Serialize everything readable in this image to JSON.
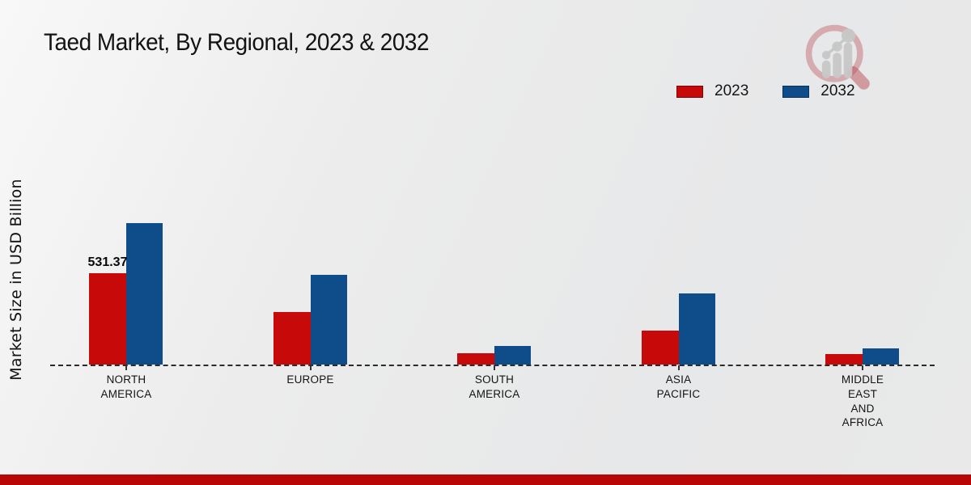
{
  "page": {
    "title": "Taed Market, By Regional, 2023 & 2032"
  },
  "y_axis": {
    "label": "Market Size in USD Billion"
  },
  "legend": {
    "items": [
      {
        "label": "2023",
        "color": "#c70909"
      },
      {
        "label": "2032",
        "color": "#0e4c8a"
      }
    ]
  },
  "chart_data": {
    "type": "bar",
    "title": "Taed Market, By Regional, 2023 & 2032",
    "xlabel": "",
    "ylabel": "Market Size in USD Billion",
    "categories": [
      "NORTH AMERICA",
      "EUROPE",
      "SOUTH AMERICA",
      "ASIA PACIFIC",
      "MIDDLE EAST AND AFRICA"
    ],
    "category_label_lines": [
      [
        "NORTH",
        "AMERICA"
      ],
      [
        "EUROPE"
      ],
      [
        "SOUTH",
        "AMERICA"
      ],
      [
        "ASIA",
        "PACIFIC"
      ],
      [
        "MIDDLE",
        "EAST",
        "AND",
        "AFRICA"
      ]
    ],
    "series": [
      {
        "name": "2023",
        "color": "#c70909",
        "values": [
          531.37,
          307,
          66,
          197,
          60
        ]
      },
      {
        "name": "2032",
        "color": "#0e4c8a",
        "values": [
          823,
          523,
          108,
          414,
          92
        ]
      }
    ],
    "data_labels": [
      {
        "series_index": 0,
        "category_index": 0,
        "text": "531.37"
      }
    ],
    "ylim": [
      0,
      900
    ],
    "grid": false,
    "legend_position": "top-right",
    "baseline_style": "dashed",
    "y_axis_ticks_visible": false
  },
  "branding": {
    "logo_icon": "magnifier-trend-bars-icon",
    "footer_bar_color": "#b80606"
  }
}
